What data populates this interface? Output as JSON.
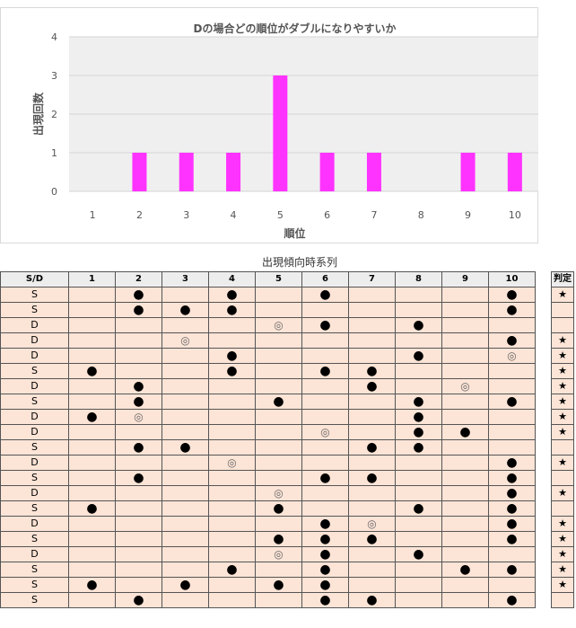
{
  "chart_data": {
    "type": "bar",
    "title": "Dの場合どの順位がダブルになりやすいか",
    "xlabel": "順位",
    "ylabel": "出現回数",
    "categories": [
      "1",
      "2",
      "3",
      "4",
      "5",
      "6",
      "7",
      "8",
      "9",
      "10"
    ],
    "values": [
      0,
      1,
      1,
      1,
      3,
      1,
      1,
      0,
      1,
      1
    ],
    "ylim": [
      0,
      4
    ],
    "yticks": [
      "0",
      "1",
      "2",
      "3",
      "4"
    ],
    "bar_color": "#ff33ff",
    "grid": true
  },
  "table": {
    "title": "出現傾向時系列",
    "headers": [
      "S/D",
      "1",
      "2",
      "3",
      "4",
      "5",
      "6",
      "7",
      "8",
      "9",
      "10"
    ],
    "judge_header": "判定",
    "rows": [
      {
        "sd": "S",
        "cells": [
          "",
          "●",
          "",
          "●",
          "",
          "●",
          "",
          "",
          "",
          "●"
        ],
        "judge": "★"
      },
      {
        "sd": "S",
        "cells": [
          "",
          "●",
          "●",
          "●",
          "",
          "",
          "",
          "",
          "",
          "●"
        ],
        "judge": ""
      },
      {
        "sd": "D",
        "cells": [
          "",
          "",
          "",
          "",
          "◎",
          "●",
          "",
          "●",
          "",
          ""
        ],
        "judge": ""
      },
      {
        "sd": "D",
        "cells": [
          "",
          "",
          "◎",
          "",
          "",
          "",
          "",
          "",
          "",
          "●"
        ],
        "judge": "★"
      },
      {
        "sd": "D",
        "cells": [
          "",
          "",
          "",
          "●",
          "",
          "",
          "",
          "●",
          "",
          "◎"
        ],
        "judge": "★"
      },
      {
        "sd": "S",
        "cells": [
          "●",
          "",
          "",
          "●",
          "",
          "●",
          "●",
          "",
          "",
          ""
        ],
        "judge": "★"
      },
      {
        "sd": "D",
        "cells": [
          "",
          "●",
          "",
          "",
          "",
          "",
          "●",
          "",
          "◎",
          ""
        ],
        "judge": "★"
      },
      {
        "sd": "S",
        "cells": [
          "",
          "●",
          "",
          "",
          "●",
          "",
          "",
          "●",
          "",
          "●"
        ],
        "judge": "★"
      },
      {
        "sd": "D",
        "cells": [
          "●",
          "◎",
          "",
          "",
          "",
          "",
          "",
          "●",
          "",
          ""
        ],
        "judge": "★"
      },
      {
        "sd": "D",
        "cells": [
          "",
          "",
          "",
          "",
          "",
          "◎",
          "",
          "●",
          "●",
          ""
        ],
        "judge": "★"
      },
      {
        "sd": "S",
        "cells": [
          "",
          "●",
          "●",
          "",
          "",
          "",
          "●",
          "●",
          "",
          ""
        ],
        "judge": ""
      },
      {
        "sd": "D",
        "cells": [
          "",
          "",
          "",
          "◎",
          "",
          "",
          "",
          "",
          "",
          "●"
        ],
        "judge": "★"
      },
      {
        "sd": "S",
        "cells": [
          "",
          "●",
          "",
          "",
          "",
          "●",
          "●",
          "",
          "",
          "●"
        ],
        "judge": ""
      },
      {
        "sd": "D",
        "cells": [
          "",
          "",
          "",
          "",
          "◎",
          "",
          "",
          "",
          "",
          "●"
        ],
        "judge": "★"
      },
      {
        "sd": "S",
        "cells": [
          "●",
          "",
          "",
          "",
          "●",
          "",
          "",
          "●",
          "",
          "●"
        ],
        "judge": ""
      },
      {
        "sd": "D",
        "cells": [
          "",
          "",
          "",
          "",
          "",
          "●",
          "◎",
          "",
          "",
          "●"
        ],
        "judge": "★"
      },
      {
        "sd": "S",
        "cells": [
          "",
          "",
          "",
          "",
          "●",
          "●",
          "●",
          "",
          "",
          "●"
        ],
        "judge": "★"
      },
      {
        "sd": "D",
        "cells": [
          "",
          "",
          "",
          "",
          "◎",
          "●",
          "",
          "●",
          "",
          ""
        ],
        "judge": "★"
      },
      {
        "sd": "S",
        "cells": [
          "",
          "",
          "",
          "●",
          "",
          "●",
          "",
          "",
          "●",
          "●"
        ],
        "judge": "★"
      },
      {
        "sd": "S",
        "cells": [
          "●",
          "",
          "●",
          "",
          "●",
          "●",
          "",
          "",
          "",
          ""
        ],
        "judge": "★"
      },
      {
        "sd": "S",
        "cells": [
          "",
          "●",
          "",
          "",
          "",
          "●",
          "●",
          "",
          "",
          "●"
        ],
        "judge": ""
      }
    ]
  }
}
